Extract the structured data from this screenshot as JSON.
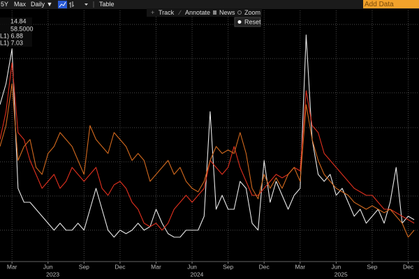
{
  "toolbar": {
    "range": "5Y",
    "max": "Max",
    "frequency": "Daily ▼",
    "table": "Table",
    "add_data": "Add Data",
    "tools": [
      "Track",
      "Annotate",
      "News",
      "Zoom"
    ],
    "reset": "Reset"
  },
  "chart_data": {
    "type": "line",
    "legend": [
      "14.84",
      "58.5000",
      "L1) 6.88",
      "L1) 7.03"
    ],
    "x": [
      1,
      1.5,
      2,
      2.5,
      3,
      3.5,
      4,
      4.5,
      5,
      5.5,
      6,
      6.5,
      7,
      7.5,
      8,
      8.5,
      9,
      9.5,
      10,
      10.5,
      11,
      11.5,
      12,
      12.5,
      13,
      13.5,
      14,
      14.5,
      15,
      15.5,
      16,
      16.5,
      17,
      17.5,
      18,
      18.5,
      19,
      19.5,
      20,
      20.5,
      21,
      21.5,
      22,
      22.5,
      23,
      23.5,
      24,
      24.5,
      25,
      25.5,
      26,
      26.5,
      27,
      27.5,
      28,
      28.5,
      29,
      29.5,
      30,
      30.5,
      31,
      31.5,
      32,
      32.5,
      33,
      33.5,
      34,
      34.5,
      35,
      35.5
    ],
    "series": [
      {
        "color": "#e8e8e8",
        "values": [
          225,
          255,
          305,
          105,
          85,
          85,
          75,
          65,
          55,
          45,
          55,
          45,
          45,
          55,
          45,
          75,
          105,
          75,
          45,
          35,
          45,
          40,
          45,
          55,
          45,
          50,
          75,
          55,
          40,
          35,
          35,
          45,
          45,
          45,
          65,
          215,
          75,
          95,
          75,
          75,
          115,
          105,
          55,
          45,
          145,
          85,
          115,
          95,
          75,
          95,
          105,
          325,
          175,
          125,
          115,
          125,
          95,
          105,
          85,
          65,
          75,
          55,
          65,
          75,
          55,
          85,
          135,
          55,
          65,
          60
        ]
      },
      {
        "color": "#e0301e",
        "values": [
          175,
          215,
          285,
          185,
          175,
          145,
          125,
          105,
          115,
          125,
          105,
          115,
          135,
          125,
          115,
          125,
          135,
          105,
          95,
          110,
          115,
          105,
          85,
          75,
          55,
          50,
          55,
          45,
          55,
          75,
          85,
          95,
          85,
          95,
          105,
          145,
          135,
          125,
          135,
          165,
          135,
          115,
          95,
          95,
          105,
          115,
          125,
          120,
          125,
          135,
          130,
          245,
          195,
          185,
          155,
          145,
          135,
          125,
          115,
          105,
          100,
          95,
          95,
          85,
          75,
          75,
          70,
          65,
          60,
          55
        ]
      },
      {
        "color": "#d2691e",
        "values": [
          165,
          195,
          255,
          145,
          165,
          175,
          135,
          125,
          155,
          165,
          185,
          175,
          165,
          145,
          125,
          195,
          175,
          165,
          155,
          185,
          175,
          165,
          145,
          155,
          145,
          115,
          125,
          135,
          145,
          125,
          135,
          115,
          105,
          100,
          115,
          145,
          165,
          155,
          160,
          155,
          185,
          155,
          105,
          90,
          125,
          105,
          120,
          105,
          125,
          135,
          115,
          225,
          175,
          145,
          125,
          115,
          105,
          100,
          95,
          85,
          80,
          75,
          80,
          75,
          70,
          75,
          65,
          55,
          35,
          45
        ]
      }
    ],
    "xlim": [
      1,
      35.9
    ],
    "xticks": [
      {
        "value": 2,
        "label": "Mar"
      },
      {
        "value": 5,
        "label": "Jun"
      },
      {
        "value": 8,
        "label": "Sep"
      },
      {
        "value": 11,
        "label": "Dec"
      },
      {
        "value": 14,
        "label": "Mar"
      },
      {
        "value": 17,
        "label": "Jun"
      },
      {
        "value": 20,
        "label": "Sep"
      },
      {
        "value": 23,
        "label": "Dec"
      },
      {
        "value": 26,
        "label": "Mar"
      },
      {
        "value": 29,
        "label": "Jun"
      },
      {
        "value": 32,
        "label": "Sep"
      },
      {
        "value": 35,
        "label": "Dec"
      }
    ],
    "year_labels": [
      {
        "value": 5.4,
        "label": "2023"
      },
      {
        "value": 17.4,
        "label": "2024"
      },
      {
        "value": 29.4,
        "label": "2025"
      }
    ],
    "ylim": [
      0,
      363
    ],
    "yticks": [
      45,
      94,
      143,
      192,
      242,
      291,
      340
    ],
    "grid": true
  }
}
